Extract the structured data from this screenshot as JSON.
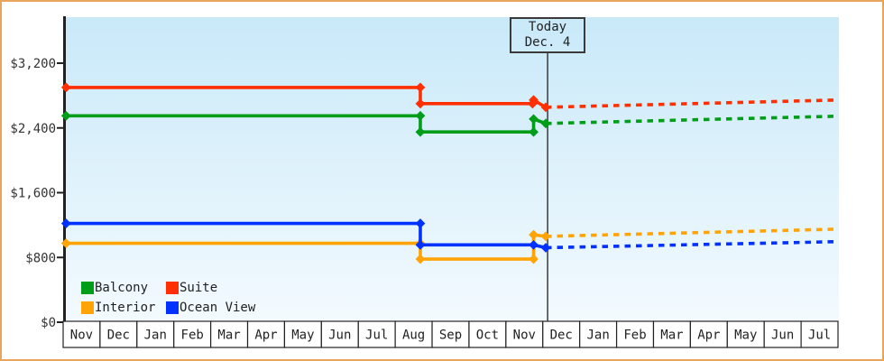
{
  "chart_data": {
    "type": "line",
    "subtype": "stepped-price-history-with-forecast",
    "title": "",
    "x_axis": {
      "unit": "month",
      "categories": [
        "Nov",
        "Dec",
        "Jan",
        "Feb",
        "Mar",
        "Apr",
        "May",
        "Jun",
        "Jul",
        "Aug",
        "Sep",
        "Oct",
        "Nov",
        "Dec",
        "Jan",
        "Feb",
        "Mar",
        "Apr",
        "May",
        "Jun",
        "Jul"
      ],
      "t_start": 0,
      "t_end": 21
    },
    "y_axis": {
      "min": 0,
      "max": 3780,
      "ticks": [
        {
          "label": "$3,200",
          "value": 3200
        },
        {
          "label": "$2,400",
          "value": 2400
        },
        {
          "label": "$1,600",
          "value": 1600
        },
        {
          "label": "$800",
          "value": 800
        },
        {
          "label": "$0",
          "value": 0
        }
      ]
    },
    "today": {
      "label": "Today",
      "date_label": "Dec. 4",
      "t": 13.13
    },
    "legend_position": "bottom-left",
    "grid": false,
    "series": [
      {
        "name": "Balcony",
        "color": "#009D18",
        "solid": [
          [
            0.08,
            2550
          ],
          [
            9.68,
            2550
          ],
          [
            9.68,
            2350
          ],
          [
            12.75,
            2350
          ],
          [
            12.75,
            2510
          ],
          [
            13.08,
            2455
          ]
        ],
        "dashed": [
          [
            13.08,
            2455
          ],
          [
            20.98,
            2545
          ]
        ]
      },
      {
        "name": "Suite",
        "color": "#FF2F00",
        "solid": [
          [
            0.08,
            2900
          ],
          [
            9.68,
            2900
          ],
          [
            9.68,
            2700
          ],
          [
            12.72,
            2700
          ],
          [
            12.75,
            2745
          ],
          [
            13.08,
            2655
          ]
        ],
        "dashed": [
          [
            13.08,
            2655
          ],
          [
            20.98,
            2745
          ]
        ]
      },
      {
        "name": "Interior",
        "color": "#FFA404",
        "solid": [
          [
            0.08,
            975
          ],
          [
            9.68,
            975
          ],
          [
            9.68,
            780
          ],
          [
            12.75,
            780
          ],
          [
            12.75,
            1080
          ],
          [
            13.08,
            1060
          ]
        ],
        "dashed": [
          [
            13.08,
            1060
          ],
          [
            20.98,
            1150
          ]
        ]
      },
      {
        "name": "Ocean View",
        "color": "#0031FF",
        "solid": [
          [
            0.08,
            1220
          ],
          [
            9.68,
            1220
          ],
          [
            9.68,
            955
          ],
          [
            12.75,
            955
          ],
          [
            13.08,
            920
          ]
        ],
        "dashed": [
          [
            13.08,
            920
          ],
          [
            20.98,
            995
          ]
        ]
      }
    ],
    "colors": {
      "frame_border": "#E9A55D",
      "axis": "#222222",
      "today_line": "#3a3a3a",
      "plot_bg_top": "#C9E9F9",
      "plot_bg_bottom": "#F3FAFE",
      "label_text": "#333333"
    }
  }
}
